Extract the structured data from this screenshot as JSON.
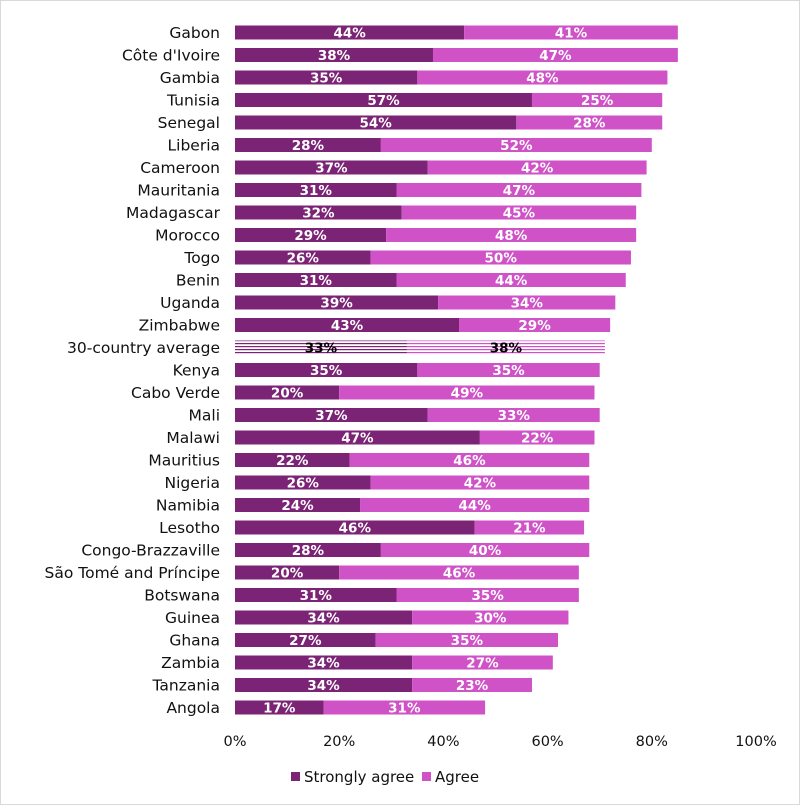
{
  "chart_data": {
    "type": "bar",
    "orientation": "horizontal",
    "stacked": true,
    "categories": [
      "Gabon",
      "Côte d'Ivoire",
      "Gambia",
      "Tunisia",
      "Senegal",
      "Liberia",
      "Cameroon",
      "Mauritania",
      "Madagascar",
      "Morocco",
      "Togo",
      "Benin",
      "Uganda",
      "Zimbabwe",
      "30-country average",
      "Kenya",
      "Cabo Verde",
      "Mali",
      "Malawi",
      "Mauritius",
      "Nigeria",
      "Namibia",
      "Lesotho",
      "Congo-Brazzaville",
      "São Tomé and Príncipe",
      "Botswana",
      "Guinea",
      "Ghana",
      "Zambia",
      "Tanzania",
      "Angola"
    ],
    "series": [
      {
        "name": "Strongly agree",
        "color": "#7b2375",
        "values": [
          44,
          38,
          35,
          57,
          54,
          28,
          37,
          31,
          32,
          29,
          26,
          31,
          39,
          43,
          33,
          35,
          20,
          37,
          47,
          22,
          26,
          24,
          46,
          28,
          20,
          31,
          34,
          27,
          34,
          34,
          17
        ]
      },
      {
        "name": "Agree",
        "color": "#cf52c7",
        "values": [
          41,
          47,
          48,
          25,
          28,
          52,
          42,
          47,
          45,
          48,
          50,
          44,
          34,
          29,
          38,
          35,
          49,
          33,
          22,
          46,
          42,
          44,
          21,
          40,
          46,
          35,
          30,
          35,
          27,
          23,
          31
        ]
      }
    ],
    "value_labels": {
      "strongly": [
        "44%",
        "38%",
        "35%",
        "57%",
        "54%",
        "28%",
        "37%",
        "31%",
        "32%",
        "29%",
        "26%",
        "31%",
        "39%",
        "43%",
        "33%",
        "35%",
        "20%",
        "37%",
        "47%",
        "22%",
        "26%",
        "24%",
        "46%",
        "28%",
        "20%",
        "31%",
        "34%",
        "27%",
        "34%",
        "34%",
        "17%"
      ],
      "agree": [
        "41%",
        "47%",
        "48%",
        "25%",
        "28%",
        "52%",
        "42%",
        "47%",
        "45%",
        "48%",
        "50%",
        "44%",
        "34%",
        "29%",
        "38%",
        "35%",
        "49%",
        "33%",
        "22%",
        "46%",
        "42%",
        "44%",
        "21%",
        "40%",
        "46%",
        "35%",
        "30%",
        "35%",
        "27%",
        "23%",
        "31%"
      ]
    },
    "highlight_category": "30-country average",
    "xlim": [
      0,
      100
    ],
    "x_ticks": [
      "0%",
      "20%",
      "40%",
      "60%",
      "80%",
      "100%"
    ],
    "grid": false,
    "legend": {
      "position": "bottom",
      "items": [
        "Strongly agree",
        "Agree"
      ]
    }
  }
}
